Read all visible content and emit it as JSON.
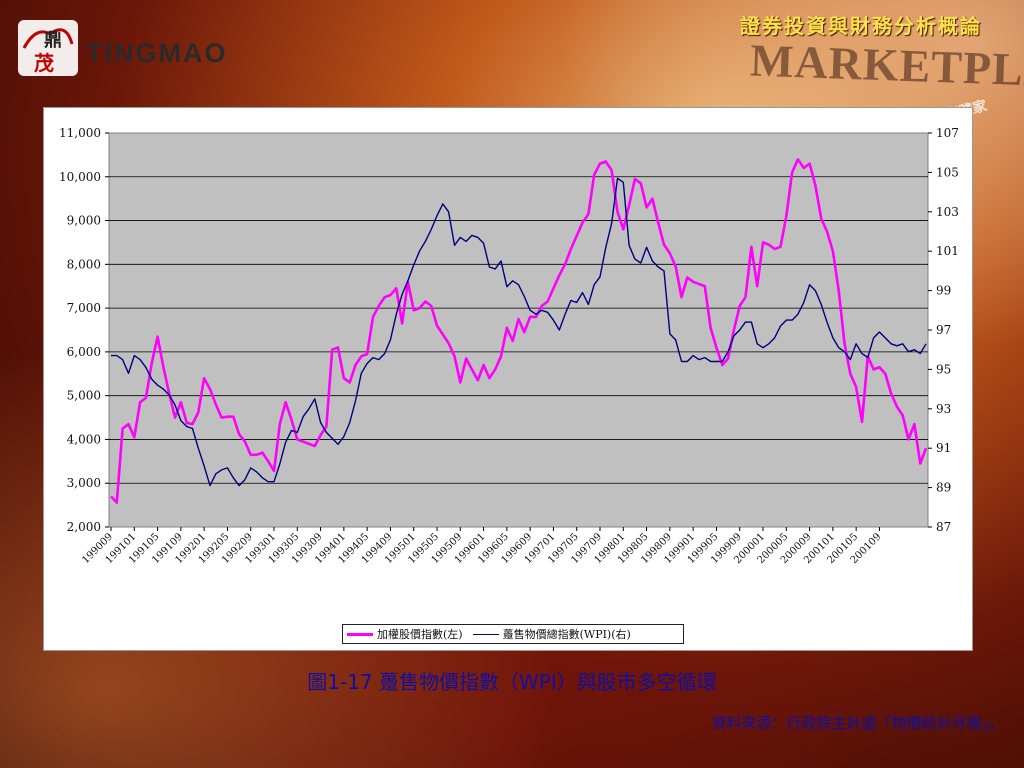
{
  "header": {
    "title": "證券投資與財務分析概論"
  },
  "logo": {
    "word": "TINGMAO",
    "glyph_top": "鼎",
    "glyph_bottom": "茂"
  },
  "background_text": {
    "marketplace": "MARKETPLACE",
    "side": "實踐家"
  },
  "caption": "圖1-17 躉售物價指數（WPI）與股市多空循環",
  "source": "資料來源：行政院主計處「物價統計月報」。",
  "colors": {
    "stock": "#ff00ff",
    "wpi": "#000080",
    "plot_bg": "#c0c0c0",
    "accent": "#ffe14a",
    "caption": "#1010a0"
  },
  "chart_data": {
    "type": "line",
    "x_tick_labels": [
      "199009",
      "199101",
      "199105",
      "199109",
      "199201",
      "199205",
      "199209",
      "199301",
      "199305",
      "199309",
      "199401",
      "199405",
      "199409",
      "199501",
      "199505",
      "199509",
      "199601",
      "199605",
      "199609",
      "199701",
      "199705",
      "199709",
      "199801",
      "199805",
      "199809",
      "199901",
      "199905",
      "199909",
      "200001",
      "200005",
      "200009",
      "200101",
      "200105",
      "200109"
    ],
    "ylim_left": [
      2000,
      11000
    ],
    "yticks_left": [
      "2,000",
      "3,000",
      "4,000",
      "5,000",
      "6,000",
      "7,000",
      "8,000",
      "9,000",
      "10,000",
      "11,000"
    ],
    "ylim_right": [
      87,
      107
    ],
    "yticks_right": [
      "87",
      "89",
      "91",
      "93",
      "95",
      "97",
      "99",
      "101",
      "103",
      "105",
      "107"
    ],
    "grid": true,
    "legend_position": "bottom",
    "series": [
      {
        "name": "加權股價指數(左)",
        "axis": "left",
        "values": [
          2700,
          2560,
          4250,
          4350,
          4050,
          4850,
          4950,
          5750,
          6350,
          5650,
          5050,
          4500,
          4850,
          4380,
          4350,
          4620,
          5400,
          5150,
          4800,
          4500,
          4520,
          4520,
          4120,
          3950,
          3650,
          3650,
          3700,
          3500,
          3280,
          4350,
          4850,
          4450,
          4000,
          3950,
          3900,
          3850,
          4100,
          4300,
          6050,
          6100,
          5400,
          5300,
          5700,
          5900,
          5950,
          6800,
          7050,
          7250,
          7300,
          7450,
          6650,
          7600,
          6950,
          7000,
          7150,
          7050,
          6600,
          6400,
          6200,
          5900,
          5300,
          5850,
          5600,
          5350,
          5700,
          5400,
          5600,
          5900,
          6550,
          6250,
          6750,
          6450,
          6800,
          6800,
          7050,
          7150,
          7450,
          7750,
          8000,
          8350,
          8650,
          8950,
          9150,
          10050,
          10300,
          10350,
          10150,
          9200,
          8800,
          9350,
          9950,
          9850,
          9300,
          9500,
          8950,
          8450,
          8250,
          7950,
          7250,
          7700,
          7600,
          7550,
          7500,
          6550,
          6100,
          5700,
          5850,
          6500,
          7050,
          7250,
          8400,
          7500,
          8500,
          8450,
          8350,
          8400,
          9100,
          10100,
          10400,
          10200,
          10300,
          9800,
          9050,
          8750,
          8300,
          7400,
          6200,
          5500,
          5200,
          4400,
          5900,
          5600,
          5650,
          5500,
          5050,
          4750,
          4550,
          4000,
          4350,
          3450,
          3800
        ]
      },
      {
        "name": "躉售物價總指數(WPI)(右)",
        "axis": "right",
        "values": [
          95.7,
          95.7,
          95.5,
          94.8,
          95.7,
          95.5,
          95.1,
          94.5,
          94.2,
          94.0,
          93.7,
          93.2,
          92.4,
          92.1,
          92.0,
          91.0,
          90.1,
          89.1,
          89.7,
          89.9,
          90.0,
          89.5,
          89.1,
          89.4,
          90.0,
          89.8,
          89.5,
          89.3,
          89.3,
          90.2,
          91.3,
          91.9,
          91.8,
          92.6,
          93.0,
          93.5,
          92.3,
          91.8,
          91.5,
          91.2,
          91.6,
          92.3,
          93.4,
          94.8,
          95.3,
          95.6,
          95.5,
          95.8,
          96.5,
          97.8,
          98.8,
          99.5,
          100.3,
          101.0,
          101.5,
          102.1,
          102.8,
          103.4,
          103.0,
          101.3,
          101.7,
          101.5,
          101.8,
          101.7,
          101.4,
          100.2,
          100.1,
          100.5,
          99.2,
          99.5,
          99.3,
          98.7,
          98.0,
          97.8,
          98.0,
          97.9,
          97.5,
          97.0,
          97.8,
          98.5,
          98.4,
          98.9,
          98.3,
          99.3,
          99.7,
          101.2,
          102.4,
          104.7,
          104.5,
          101.3,
          100.6,
          100.4,
          101.2,
          100.5,
          100.2,
          100.0,
          96.8,
          96.5,
          95.4,
          95.4,
          95.7,
          95.5,
          95.6,
          95.4,
          95.4,
          95.4,
          95.9,
          96.7,
          97.0,
          97.4,
          97.4,
          96.3,
          96.1,
          96.3,
          96.6,
          97.2,
          97.5,
          97.5,
          97.8,
          98.4,
          99.3,
          99.0,
          98.3,
          97.4,
          96.6,
          96.1,
          95.9,
          95.5,
          96.3,
          95.8,
          95.6,
          96.6,
          96.9,
          96.6,
          96.3,
          96.2,
          96.3,
          95.9,
          96.0,
          95.8,
          96.3
        ]
      }
    ]
  }
}
